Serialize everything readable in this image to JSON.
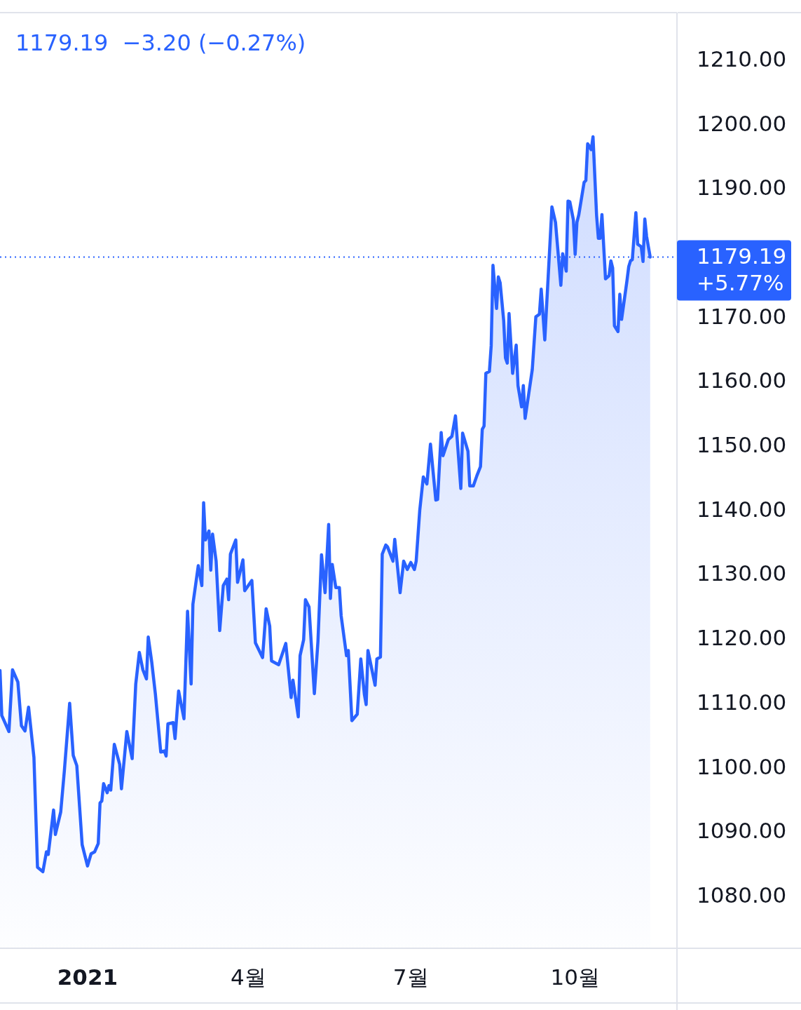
{
  "chart_data": {
    "type": "area",
    "title": "1179.19  −3.20 (−0.27%)",
    "color": "#2962ff",
    "x": [
      "2020-11-13",
      "2020-11-14",
      "2020-11-18",
      "2020-11-20",
      "2020-11-23",
      "2020-11-25",
      "2020-11-27",
      "2020-11-29",
      "2020-12-02",
      "2020-12-04",
      "2020-12-07",
      "2020-12-09",
      "2020-12-10",
      "2020-12-13",
      "2020-12-14",
      "2020-12-17",
      "2020-12-19",
      "2020-12-22",
      "2020-12-24",
      "2020-12-26",
      "2020-12-29",
      "2021-01-01",
      "2021-01-03",
      "2021-01-05",
      "2021-01-07",
      "2021-01-08",
      "2021-01-09",
      "2021-01-10",
      "2021-01-12",
      "2021-01-13",
      "2021-01-14",
      "2021-01-16",
      "2021-01-19",
      "2021-01-20",
      "2021-01-23",
      "2021-01-26",
      "2021-01-28",
      "2021-01-30",
      "2021-02-01",
      "2021-02-03",
      "2021-02-04",
      "2021-02-06",
      "2021-02-08",
      "2021-02-11",
      "2021-02-13",
      "2021-02-14",
      "2021-02-15",
      "2021-02-18",
      "2021-02-19",
      "2021-02-21",
      "2021-02-24",
      "2021-02-26",
      "2021-02-28",
      "2021-03-01",
      "2021-03-04",
      "2021-03-06",
      "2021-03-07",
      "2021-03-08",
      "2021-03-10",
      "2021-03-11",
      "2021-03-12",
      "2021-03-14",
      "2021-03-16",
      "2021-03-18",
      "2021-03-20",
      "2021-03-21",
      "2021-03-22",
      "2021-03-25",
      "2021-03-26",
      "2021-03-29",
      "2021-03-30",
      "2021-04-03",
      "2021-04-05",
      "2021-04-09",
      "2021-04-11",
      "2021-04-13",
      "2021-04-14",
      "2021-04-18",
      "2021-04-22",
      "2021-04-25",
      "2021-04-26",
      "2021-04-29",
      "2021-04-30",
      "2021-05-02",
      "2021-05-03",
      "2021-05-05",
      "2021-05-08",
      "2021-05-10",
      "2021-05-12",
      "2021-05-14",
      "2021-05-16",
      "2021-05-17",
      "2021-05-18",
      "2021-05-20",
      "2021-05-22",
      "2021-05-23",
      "2021-05-26",
      "2021-05-27",
      "2021-05-29",
      "2021-06-01",
      "2021-06-03",
      "2021-06-05",
      "2021-06-06",
      "2021-06-07",
      "2021-06-11",
      "2021-06-12",
      "2021-06-14",
      "2021-06-15",
      "2021-06-17",
      "2021-06-18",
      "2021-06-21",
      "2021-06-22",
      "2021-06-25",
      "2021-06-27",
      "2021-06-29",
      "2021-07-01",
      "2021-07-03",
      "2021-07-04",
      "2021-07-06",
      "2021-07-08",
      "2021-07-10",
      "2021-07-12",
      "2021-07-15",
      "2021-07-16",
      "2021-07-18",
      "2021-07-19",
      "2021-07-22",
      "2021-07-24",
      "2021-07-26",
      "2021-07-29",
      "2021-07-30",
      "2021-08-02",
      "2021-08-03",
      "2021-08-05",
      "2021-08-07",
      "2021-08-09",
      "2021-08-10",
      "2021-08-11",
      "2021-08-12",
      "2021-08-14",
      "2021-08-15",
      "2021-08-16",
      "2021-08-18",
      "2021-08-19",
      "2021-08-20",
      "2021-08-22",
      "2021-08-23",
      "2021-08-24",
      "2021-08-25",
      "2021-08-27",
      "2021-08-29",
      "2021-08-30",
      "2021-09-01",
      "2021-09-02",
      "2021-09-03",
      "2021-09-07",
      "2021-09-09",
      "2021-09-11",
      "2021-09-12",
      "2021-09-14",
      "2021-09-18",
      "2021-09-20",
      "2021-09-23",
      "2021-09-24",
      "2021-09-26",
      "2021-09-27",
      "2021-09-28",
      "2021-09-30",
      "2021-10-01",
      "2021-10-02",
      "2021-10-03",
      "2021-10-06",
      "2021-10-07",
      "2021-10-08",
      "2021-10-10",
      "2021-10-11",
      "2021-10-13",
      "2021-10-14",
      "2021-10-15",
      "2021-10-16",
      "2021-10-18",
      "2021-10-20",
      "2021-10-21",
      "2021-10-22",
      "2021-10-23",
      "2021-10-25",
      "2021-10-26",
      "2021-10-27",
      "2021-10-30",
      "2021-10-31",
      "2021-11-01",
      "2021-11-02",
      "2021-11-04",
      "2021-11-05",
      "2021-11-07",
      "2021-11-08",
      "2021-11-09",
      "2021-11-10",
      "2021-11-12"
    ],
    "values": [
      1114.9,
      1107.9,
      1105.4,
      1115.0,
      1113.1,
      1106.3,
      1105.5,
      1109.2,
      1101.4,
      1084.3,
      1083.6,
      1086.7,
      1086.3,
      1093.2,
      1089.4,
      1092.9,
      1099.2,
      1109.8,
      1101.7,
      1100.1,
      1087.8,
      1084.5,
      1086.4,
      1086.7,
      1088.0,
      1094.3,
      1094.6,
      1097.3,
      1095.9,
      1097.0,
      1096.3,
      1103.4,
      1100.3,
      1096.5,
      1105.4,
      1101.2,
      1112.8,
      1117.7,
      1115.0,
      1113.6,
      1120.1,
      1116.1,
      1111.2,
      1102.2,
      1102.4,
      1101.6,
      1106.6,
      1106.8,
      1104.3,
      1111.7,
      1107.4,
      1124.1,
      1112.8,
      1125.2,
      1131.2,
      1128.1,
      1141.0,
      1135.2,
      1136.6,
      1130.5,
      1136.1,
      1131.9,
      1121.1,
      1128.1,
      1129.1,
      1125.9,
      1133.0,
      1135.2,
      1128.6,
      1132.1,
      1127.3,
      1128.9,
      1119.2,
      1116.9,
      1124.5,
      1121.8,
      1116.4,
      1115.8,
      1119.1,
      1110.7,
      1113.4,
      1107.7,
      1117.2,
      1119.7,
      1125.9,
      1124.8,
      1111.3,
      1119.4,
      1132.9,
      1127.0,
      1137.6,
      1126.1,
      1131.4,
      1127.8,
      1127.8,
      1123.4,
      1117.2,
      1118.0,
      1107.1,
      1108.1,
      1116.7,
      1111.2,
      1109.6,
      1118.0,
      1112.6,
      1116.7,
      1117.0,
      1133.0,
      1134.4,
      1134.1,
      1131.9,
      1135.3,
      1127.0,
      1131.9,
      1130.6,
      1131.7,
      1130.6,
      1131.9,
      1139.8,
      1145.0,
      1143.9,
      1150.1,
      1141.4,
      1141.5,
      1151.9,
      1148.3,
      1150.8,
      1151.3,
      1154.5,
      1143.2,
      1151.8,
      1149.0,
      1143.6,
      1143.6,
      1145.2,
      1146.6,
      1152.4,
      1152.9,
      1161.1,
      1161.4,
      1165.4,
      1177.9,
      1171.2,
      1176.1,
      1175.2,
      1169.3,
      1163.5,
      1162.7,
      1170.4,
      1161.1,
      1165.5,
      1159.2,
      1155.9,
      1159.2,
      1154.1,
      1161.7,
      1169.9,
      1170.3,
      1174.2,
      1166.3,
      1187.0,
      1184.6,
      1174.8,
      1179.7,
      1177.0,
      1187.9,
      1187.8,
      1185.0,
      1179.6,
      1184.6,
      1185.7,
      1190.8,
      1191.1,
      1196.8,
      1195.9,
      1197.9,
      1185.7,
      1182.1,
      1182.1,
      1185.8,
      1175.8,
      1176.3,
      1178.6,
      1177.5,
      1168.5,
      1167.6,
      1173.4,
      1169.5,
      1175.5,
      1177.7,
      1178.6,
      1178.8,
      1186.1,
      1181.2,
      1180.8,
      1178.5,
      1185.1,
      1182.4,
      1179.19
    ],
    "xlim": [
      "2020-11-13",
      "2021-11-27"
    ],
    "xticks": [
      {
        "value": "2021-01-01",
        "label": "2021"
      },
      {
        "value": "2021-04-01",
        "label": "4월"
      },
      {
        "value": "2021-07-01",
        "label": "7월"
      },
      {
        "value": "2021-10-01",
        "label": "10월"
      }
    ],
    "ylim": [
      1071.7,
      1217.2
    ],
    "yticks": [
      {
        "value": 1080,
        "label": "1080.00"
      },
      {
        "value": 1090,
        "label": "1090.00"
      },
      {
        "value": 1100,
        "label": "1100.00"
      },
      {
        "value": 1110,
        "label": "1110.00"
      },
      {
        "value": 1120,
        "label": "1120.00"
      },
      {
        "value": 1130,
        "label": "1130.00"
      },
      {
        "value": 1140,
        "label": "1140.00"
      },
      {
        "value": 1150,
        "label": "1150.00"
      },
      {
        "value": 1160,
        "label": "1160.00"
      },
      {
        "value": 1170,
        "label": "1170.00"
      },
      {
        "value": 1190,
        "label": "1190.00"
      },
      {
        "value": 1200,
        "label": "1200.00"
      },
      {
        "value": 1210,
        "label": "1210.00"
      }
    ],
    "ref_lines": [
      {
        "axis": "y",
        "value": 1179.19,
        "label": "1179.19 +5.77%",
        "color": "#2962ff",
        "line_style": "dotted"
      }
    ]
  }
}
